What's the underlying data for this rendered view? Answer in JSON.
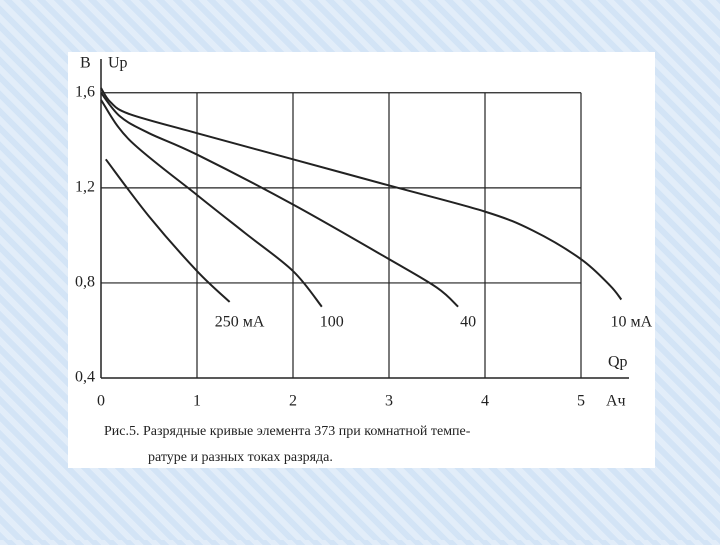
{
  "chart_data": {
    "type": "line",
    "y_unit_label": "В",
    "y_label": "Uр",
    "x_label": "Qр",
    "x_unit_label": "Ач",
    "caption": [
      "Рис.5. Разрядные кривые элемента 373 при комнатной темпе-",
      "ратуре и разных токах разряда."
    ],
    "xlim": [
      0,
      5.5
    ],
    "ylim": [
      0.4,
      1.7
    ],
    "xticks": [
      0,
      1,
      2,
      3,
      4,
      5
    ],
    "yticks": [
      {
        "value": 0.4,
        "label": "0,4"
      },
      {
        "value": 0.8,
        "label": "0,8"
      },
      {
        "value": 1.2,
        "label": "1,2"
      },
      {
        "value": 1.6,
        "label": "1,6"
      }
    ],
    "grid": true,
    "series": [
      {
        "name": "250 мА",
        "color": "#222222",
        "x": [
          0.05,
          0.5,
          1,
          1.34
        ],
        "values": [
          1.32,
          1.08,
          0.85,
          0.72
        ]
      },
      {
        "name": "100",
        "color": "#222222",
        "x": [
          0,
          0.3,
          1,
          1.5,
          2,
          2.3
        ],
        "values": [
          1.57,
          1.4,
          1.17,
          1.01,
          0.85,
          0.7
        ]
      },
      {
        "name": "40",
        "color": "#222222",
        "x": [
          0,
          0.2,
          0.5,
          1,
          2,
          3,
          3.5,
          3.72
        ],
        "values": [
          1.6,
          1.5,
          1.43,
          1.34,
          1.13,
          0.9,
          0.78,
          0.7
        ]
      },
      {
        "name": "10 мА",
        "color": "#222222",
        "x": [
          0,
          0.1,
          0.3,
          1,
          2,
          3,
          4,
          4.5,
          5,
          5.3,
          5.42
        ],
        "values": [
          1.62,
          1.56,
          1.51,
          1.43,
          1.32,
          1.21,
          1.1,
          1.02,
          0.9,
          0.79,
          0.73
        ]
      }
    ]
  }
}
